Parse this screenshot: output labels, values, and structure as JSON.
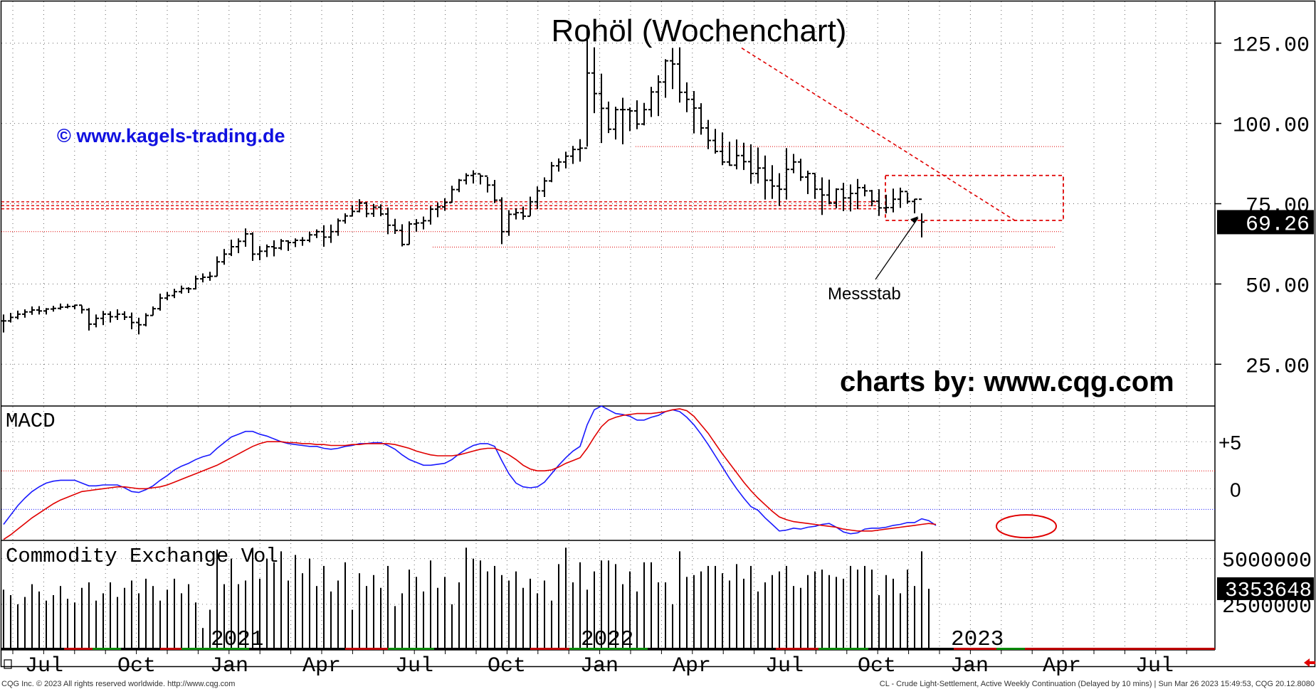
{
  "colors": {
    "background": "#ffffff",
    "bars": "#000000",
    "grid": "#000000",
    "annotation": "#e00000",
    "watermark": "#1010e0",
    "macd_line": "#1a1aff",
    "signal_line": "#e00000",
    "last_price_bg": "#000000",
    "last_price_fg": "#ffffff"
  },
  "chart_data": [
    {
      "panel": "price",
      "type": "ohlc",
      "title": "Rohöl (Wochenchart)",
      "watermark": "© www.kagels-trading.de",
      "credit": "charts by: www.cqg.com",
      "annotation": "Messstab",
      "y_ticks": [
        "125.00",
        "100.00",
        "75.00",
        "50.00",
        "25.00"
      ],
      "y_tick_values": [
        125,
        100,
        75,
        50,
        25
      ],
      "ylim": [
        12,
        138
      ],
      "last_price": "69.26",
      "last_price_value": 69.26,
      "grid": "dotted",
      "weeks_start": "2020-06-29",
      "close": [
        38.5,
        39.6,
        40.6,
        41.3,
        41.9,
        41.6,
        42.2,
        42.4,
        42.8,
        43.0,
        43.4,
        42.0,
        37.5,
        39.3,
        40.6,
        39.8,
        40.6,
        39.7,
        38.0,
        37.3,
        40.2,
        42.3,
        45.6,
        46.4,
        47.6,
        48.6,
        48.5,
        51.6,
        52.1,
        52.4,
        56.9,
        59.3,
        61.6,
        63.3,
        65.6,
        59.3,
        60.2,
        61.6,
        61.2,
        63.4,
        62.9,
        63.6,
        63.6,
        65.3,
        66.3,
        64.6,
        66.3,
        69.7,
        71.2,
        72.6,
        75.2,
        71.9,
        73.9,
        71.8,
        68.3,
        66.7,
        62.3,
        68.7,
        69.0,
        69.7,
        73.3,
        74.0,
        75.4,
        79.4,
        82.3,
        83.8,
        84.3,
        83.6,
        80.8,
        76.1,
        66.3,
        71.7,
        72.2,
        71.1,
        75.6,
        79.0,
        82.1,
        86.8,
        88.0,
        89.8,
        91.9,
        92.3,
        115.7,
        109.3,
        104.7,
        98.2,
        104.3,
        104.3,
        103.9,
        99.8,
        104.3,
        109.8,
        112.9,
        119.5,
        118.5,
        109.7,
        107.5,
        104.8,
        98.6,
        94.7,
        91.3,
        88.0,
        87.0,
        90.0,
        88.1,
        84.4,
        86.1,
        82.3,
        80.5,
        79.5,
        85.7,
        88.0,
        83.3,
        84.4,
        79.5,
        77.7,
        75.2,
        79.5,
        76.8,
        78.2,
        80.0,
        79.0,
        75.8,
        73.7,
        73.8,
        76.4,
        78.8,
        75.7,
        76.4,
        69.3
      ],
      "high": [
        40.5,
        41.0,
        41.7,
        42.1,
        43.0,
        43.1,
        42.5,
        43.2,
        43.9,
        43.8,
        43.5,
        43.3,
        42.5,
        40.5,
        41.6,
        41.5,
        42.1,
        41.5,
        41.1,
        39.5,
        40.9,
        43.0,
        47.0,
        47.5,
        48.5,
        49.5,
        49.0,
        52.6,
        53.3,
        53.8,
        58.6,
        60.9,
        63.8,
        64.2,
        67.3,
        66.1,
        61.8,
        62.3,
        63.6,
        64.0,
        63.6,
        64.2,
        64.6,
        66.3,
        67.0,
        68.3,
        68.5,
        70.4,
        72.0,
        74.5,
        76.4,
        75.5,
        74.9,
        74.8,
        73.8,
        70.3,
        68.6,
        69.5,
        70.2,
        71.0,
        74.2,
        75.4,
        76.7,
        80.6,
        82.7,
        84.5,
        85.4,
        84.1,
        83.3,
        82.4,
        77.0,
        73.0,
        73.6,
        74.1,
        77.2,
        80.4,
        83.2,
        88.0,
        89.1,
        91.2,
        93.0,
        95.1,
        130.5,
        123.7,
        115.5,
        106.8,
        105.2,
        108.0,
        105.0,
        107.2,
        106.4,
        111.4,
        115.0,
        120.0,
        123.5,
        123.7,
        112.8,
        110.1,
        106.3,
        101.1,
        98.3,
        97.2,
        94.3,
        95.0,
        94.0,
        93.5,
        92.5,
        90.0,
        87.0,
        84.5,
        92.3,
        90.5,
        89.0,
        85.3,
        84.5,
        83.2,
        82.5,
        79.8,
        81.5,
        81.0,
        82.7,
        81.0,
        79.3,
        79.5,
        77.8,
        79.7,
        80.0,
        78.5,
        76.5,
        72.0
      ],
      "low": [
        34.9,
        38.0,
        39.0,
        39.5,
        40.4,
        40.5,
        40.5,
        41.4,
        42.0,
        42.4,
        42.1,
        40.8,
        35.5,
        36.5,
        37.2,
        38.0,
        38.8,
        38.8,
        35.9,
        34.3,
        36.8,
        40.2,
        41.7,
        45.0,
        45.6,
        47.0,
        47.2,
        48.3,
        50.5,
        51.0,
        52.4,
        56.0,
        58.7,
        59.6,
        61.6,
        57.2,
        57.4,
        58.4,
        58.6,
        60.6,
        60.3,
        61.5,
        61.9,
        63.0,
        64.3,
        61.6,
        62.8,
        65.0,
        68.8,
        71.0,
        72.3,
        70.8,
        70.9,
        71.1,
        65.5,
        65.6,
        61.7,
        62.3,
        66.3,
        67.0,
        68.5,
        70.8,
        72.8,
        75.3,
        78.6,
        81.0,
        81.3,
        81.0,
        78.5,
        75.2,
        62.4,
        65.0,
        70.1,
        70.0,
        71.2,
        73.3,
        77.1,
        81.7,
        85.0,
        86.0,
        87.4,
        88.1,
        92.8,
        103.2,
        93.9,
        97.0,
        95.0,
        93.5,
        97.6,
        98.2,
        99.4,
        102.0,
        102.3,
        108.0,
        110.7,
        106.5,
        103.5,
        96.9,
        96.5,
        92.0,
        90.6,
        87.0,
        86.8,
        85.7,
        85.5,
        81.2,
        81.3,
        76.3,
        76.5,
        74.3,
        76.3,
        84.5,
        82.1,
        78.0,
        76.5,
        71.5,
        74.8,
        73.6,
        72.7,
        72.6,
        73.3,
        77.3,
        74.2,
        71.2,
        72.0,
        72.3,
        73.7,
        75.0,
        72.0,
        64.5
      ]
    },
    {
      "panel": "macd",
      "type": "line",
      "title": "MACD",
      "y_ticks": [
        "+5",
        "0"
      ],
      "y_tick_values": [
        5,
        0
      ],
      "ylim": [
        -5.5,
        8.8
      ],
      "reference_lines": [
        1.9,
        -2.2
      ],
      "series": [
        {
          "key": "macd",
          "color": "#1a1aff",
          "values": [
            -3.8,
            -2.8,
            -1.8,
            -1.0,
            -0.3,
            0.2,
            0.6,
            0.8,
            0.9,
            0.9,
            0.9,
            0.6,
            0.3,
            0.3,
            0.4,
            0.4,
            0.4,
            0.1,
            -0.3,
            -0.4,
            -0.1,
            0.3,
            0.9,
            1.4,
            2.0,
            2.4,
            2.7,
            3.1,
            3.4,
            3.6,
            4.3,
            4.9,
            5.5,
            5.8,
            6.1,
            6.1,
            5.8,
            5.6,
            5.3,
            5.0,
            4.8,
            4.7,
            4.6,
            4.5,
            4.5,
            4.3,
            4.2,
            4.3,
            4.5,
            4.6,
            4.8,
            4.8,
            4.9,
            4.9,
            4.6,
            4.2,
            3.6,
            3.1,
            2.8,
            2.5,
            2.5,
            2.6,
            2.7,
            3.1,
            3.7,
            4.2,
            4.6,
            4.8,
            4.8,
            4.5,
            3.0,
            1.6,
            0.6,
            0.2,
            0.1,
            0.2,
            0.7,
            1.6,
            2.5,
            3.3,
            4.0,
            4.5,
            6.8,
            8.4,
            8.8,
            8.4,
            8.0,
            7.9,
            7.7,
            7.3,
            7.3,
            7.6,
            7.8,
            8.2,
            8.4,
            8.2,
            7.6,
            6.8,
            5.8,
            4.7,
            3.5,
            2.3,
            1.1,
            0.0,
            -1.0,
            -1.9,
            -2.3,
            -3.1,
            -3.8,
            -4.5,
            -4.4,
            -4.2,
            -4.3,
            -4.1,
            -4.0,
            -3.8,
            -3.7,
            -4.1,
            -4.6,
            -4.8,
            -4.7,
            -4.3,
            -4.2,
            -4.2,
            -4.1,
            -3.9,
            -3.8,
            -3.6,
            -3.6,
            -3.2,
            -3.4,
            -3.9
          ]
        },
        {
          "key": "signal",
          "color": "#e00000",
          "values": [
            -5.4,
            -4.9,
            -4.3,
            -3.7,
            -3.1,
            -2.6,
            -2.1,
            -1.6,
            -1.2,
            -0.9,
            -0.6,
            -0.3,
            -0.2,
            -0.1,
            0.0,
            0.1,
            0.2,
            0.2,
            0.1,
            0.0,
            0.0,
            0.1,
            0.2,
            0.4,
            0.7,
            1.0,
            1.3,
            1.6,
            1.9,
            2.2,
            2.5,
            2.9,
            3.3,
            3.7,
            4.1,
            4.5,
            4.8,
            5.0,
            5.0,
            5.0,
            4.9,
            4.9,
            4.8,
            4.8,
            4.7,
            4.7,
            4.6,
            4.6,
            4.6,
            4.7,
            4.7,
            4.8,
            4.8,
            4.8,
            4.8,
            4.7,
            4.5,
            4.3,
            4.0,
            3.8,
            3.6,
            3.5,
            3.5,
            3.5,
            3.6,
            3.8,
            4.0,
            4.2,
            4.3,
            4.3,
            4.0,
            3.6,
            3.1,
            2.5,
            2.1,
            1.9,
            1.9,
            2.0,
            2.3,
            2.7,
            3.0,
            3.3,
            4.3,
            5.5,
            6.6,
            7.3,
            7.6,
            7.8,
            7.9,
            8.0,
            8.0,
            8.0,
            8.1,
            8.2,
            8.4,
            8.5,
            8.3,
            7.7,
            6.8,
            5.9,
            4.8,
            3.7,
            2.7,
            1.7,
            0.7,
            -0.2,
            -1.0,
            -1.7,
            -2.4,
            -3.0,
            -3.3,
            -3.5,
            -3.6,
            -3.7,
            -3.8,
            -3.9,
            -4.0,
            -4.1,
            -4.3,
            -4.4,
            -4.5,
            -4.5,
            -4.5,
            -4.4,
            -4.3,
            -4.2,
            -4.1,
            -4.0,
            -3.9,
            -3.8,
            -3.7,
            -3.8
          ]
        }
      ]
    },
    {
      "panel": "volume",
      "type": "bar",
      "title": "Commodity Exchange Vol",
      "y_ticks": [
        "5000000",
        "2500000"
      ],
      "y_tick_values": [
        5000000,
        2500000
      ],
      "ylim": [
        0,
        6000000
      ],
      "last_volume": "3353648",
      "last_volume_value": 3353648,
      "values": [
        3300000,
        3000000,
        2500000,
        2900000,
        3600000,
        3200000,
        2700000,
        3000000,
        3500000,
        2800000,
        2600000,
        3400000,
        3700000,
        2700000,
        3100000,
        3700000,
        2900000,
        3400000,
        3800000,
        3100000,
        3900000,
        3500000,
        2700000,
        3300000,
        3900000,
        3100000,
        3600000,
        2600000,
        1200000,
        2200000,
        5500000,
        3600000,
        5000000,
        3600000,
        3800000,
        5600000,
        3900000,
        5000000,
        4800000,
        5400000,
        3800000,
        5200000,
        4200000,
        5000000,
        3500000,
        4600000,
        3200000,
        3800000,
        4800000,
        2200000,
        4200000,
        3500000,
        4100000,
        3400000,
        4600000,
        2400000,
        3100000,
        4400000,
        4000000,
        3200000,
        4900000,
        3400000,
        4000000,
        2500000,
        3700000,
        5600000,
        5000000,
        4900000,
        4300000,
        4600000,
        4100000,
        3800000,
        4300000,
        3400000,
        3900000,
        3100000,
        3800000,
        2700000,
        4700000,
        5600000,
        3700000,
        4800000,
        3300000,
        4300000,
        4900000,
        4900000,
        4700000,
        3600000,
        4300000,
        3200000,
        4800000,
        4800000,
        3700000,
        3700000,
        2500000,
        5400000,
        4000000,
        4100000,
        4300000,
        4600000,
        4600000,
        4200000,
        3800000,
        4700000,
        3900000,
        4600000,
        3200000,
        3700000,
        4100000,
        4300000,
        4600000,
        3500000,
        3400000,
        4100000,
        4300000,
        4400000,
        4100000,
        4000000,
        3900000,
        4600000,
        4400000,
        4600000,
        4400000,
        3000000,
        4100000,
        3900000,
        3100000,
        4400000,
        3500000,
        5400000,
        3350000
      ],
      "year_labels": [
        "2021",
        "2022",
        "2023"
      ]
    }
  ],
  "x_axis": {
    "labels": [
      "Jul",
      "Oct",
      "Jan",
      "Apr",
      "Jul",
      "Oct",
      "Jan",
      "Apr",
      "Jul",
      "Oct",
      "Jan",
      "Apr",
      "Jul"
    ]
  },
  "footer": {
    "left": "CQG Inc. © 2023 All rights reserved worldwide. http://www.cqg.com",
    "right": "CL - Crude Light-Settlement, Active Weekly Continuation (Delayed by 10 mins) | Sun Mar 26 2023 15:49:53, CQG 20.12.8080"
  }
}
